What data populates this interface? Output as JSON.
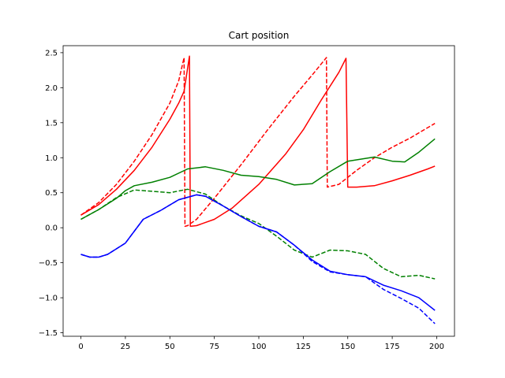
{
  "chart_data": {
    "type": "line",
    "title": "Cart position",
    "xlabel": "",
    "ylabel": "",
    "xlim": [
      -10,
      210
    ],
    "ylim": [
      -1.55,
      2.6
    ],
    "xticks": [
      0,
      25,
      50,
      75,
      100,
      125,
      150,
      175,
      200
    ],
    "xtick_labels": [
      "0",
      "25",
      "50",
      "75",
      "100",
      "125",
      "150",
      "175",
      "200"
    ],
    "yticks": [
      -1.5,
      -1.0,
      -0.5,
      0.0,
      0.5,
      1.0,
      1.5,
      2.0,
      2.5
    ],
    "ytick_labels": [
      "−1.5",
      "−1.0",
      "−0.5",
      "0.0",
      "0.5",
      "1.0",
      "1.5",
      "2.0",
      "2.5"
    ],
    "grid": false,
    "legend": "none",
    "series": [
      {
        "color": "#ff0000",
        "style": "solid",
        "points": [
          [
            0,
            0.18
          ],
          [
            10,
            0.33
          ],
          [
            20,
            0.55
          ],
          [
            30,
            0.82
          ],
          [
            40,
            1.15
          ],
          [
            50,
            1.55
          ],
          [
            55,
            1.78
          ],
          [
            58,
            1.95
          ],
          [
            61,
            2.45
          ],
          [
            61.5,
            0.02
          ],
          [
            65,
            0.03
          ],
          [
            75,
            0.12
          ],
          [
            85,
            0.28
          ],
          [
            100,
            0.62
          ],
          [
            115,
            1.05
          ],
          [
            125,
            1.4
          ],
          [
            135,
            1.82
          ],
          [
            145,
            2.22
          ],
          [
            149,
            2.42
          ],
          [
            150,
            0.58
          ],
          [
            155,
            0.58
          ],
          [
            165,
            0.6
          ],
          [
            175,
            0.67
          ],
          [
            185,
            0.75
          ],
          [
            195,
            0.84
          ],
          [
            199,
            0.88
          ]
        ]
      },
      {
        "color": "#ff0000",
        "style": "dashed",
        "points": [
          [
            0,
            0.18
          ],
          [
            10,
            0.36
          ],
          [
            20,
            0.62
          ],
          [
            30,
            0.95
          ],
          [
            40,
            1.33
          ],
          [
            50,
            1.78
          ],
          [
            55,
            2.1
          ],
          [
            58,
            2.43
          ],
          [
            58.5,
            0.02
          ],
          [
            60,
            0.03
          ],
          [
            65,
            0.12
          ],
          [
            75,
            0.42
          ],
          [
            90,
            0.9
          ],
          [
            105,
            1.4
          ],
          [
            120,
            1.88
          ],
          [
            130,
            2.18
          ],
          [
            138,
            2.43
          ],
          [
            138.5,
            0.58
          ],
          [
            145,
            0.62
          ],
          [
            155,
            0.82
          ],
          [
            165,
            1.0
          ],
          [
            175,
            1.15
          ],
          [
            185,
            1.28
          ],
          [
            195,
            1.43
          ],
          [
            199,
            1.49
          ]
        ]
      },
      {
        "color": "#008000",
        "style": "solid",
        "points": [
          [
            0,
            0.12
          ],
          [
            10,
            0.26
          ],
          [
            20,
            0.42
          ],
          [
            25,
            0.53
          ],
          [
            30,
            0.6
          ],
          [
            40,
            0.65
          ],
          [
            50,
            0.72
          ],
          [
            60,
            0.84
          ],
          [
            70,
            0.87
          ],
          [
            80,
            0.82
          ],
          [
            90,
            0.75
          ],
          [
            100,
            0.73
          ],
          [
            110,
            0.69
          ],
          [
            120,
            0.61
          ],
          [
            130,
            0.63
          ],
          [
            140,
            0.8
          ],
          [
            150,
            0.95
          ],
          [
            165,
            1.01
          ],
          [
            175,
            0.95
          ],
          [
            182,
            0.94
          ],
          [
            190,
            1.08
          ],
          [
            199,
            1.27
          ]
        ]
      },
      {
        "color": "#008000",
        "style": "dashed",
        "points": [
          [
            0,
            0.12
          ],
          [
            10,
            0.26
          ],
          [
            20,
            0.43
          ],
          [
            30,
            0.54
          ],
          [
            40,
            0.52
          ],
          [
            50,
            0.5
          ],
          [
            60,
            0.55
          ],
          [
            70,
            0.48
          ],
          [
            80,
            0.31
          ],
          [
            90,
            0.17
          ],
          [
            100,
            0.06
          ],
          [
            110,
            -0.12
          ],
          [
            120,
            -0.32
          ],
          [
            130,
            -0.42
          ],
          [
            140,
            -0.32
          ],
          [
            150,
            -0.33
          ],
          [
            160,
            -0.38
          ],
          [
            170,
            -0.58
          ],
          [
            180,
            -0.7
          ],
          [
            190,
            -0.68
          ],
          [
            199,
            -0.73
          ]
        ]
      },
      {
        "color": "#0000ff",
        "style": "solid",
        "points": [
          [
            0,
            -0.38
          ],
          [
            5,
            -0.42
          ],
          [
            10,
            -0.42
          ],
          [
            15,
            -0.38
          ],
          [
            25,
            -0.22
          ],
          [
            35,
            0.12
          ],
          [
            45,
            0.25
          ],
          [
            55,
            0.4
          ],
          [
            65,
            0.47
          ],
          [
            70,
            0.45
          ],
          [
            80,
            0.31
          ],
          [
            90,
            0.16
          ],
          [
            100,
            0.02
          ],
          [
            110,
            -0.06
          ],
          [
            120,
            -0.25
          ],
          [
            130,
            -0.46
          ],
          [
            140,
            -0.62
          ],
          [
            150,
            -0.67
          ],
          [
            160,
            -0.7
          ],
          [
            170,
            -0.82
          ],
          [
            180,
            -0.9
          ],
          [
            190,
            -1.0
          ],
          [
            199,
            -1.18
          ]
        ]
      },
      {
        "color": "#0000ff",
        "style": "dashed",
        "points": [
          [
            0,
            -0.38
          ],
          [
            5,
            -0.42
          ],
          [
            10,
            -0.42
          ],
          [
            15,
            -0.38
          ],
          [
            25,
            -0.22
          ],
          [
            35,
            0.12
          ],
          [
            45,
            0.25
          ],
          [
            55,
            0.4
          ],
          [
            65,
            0.47
          ],
          [
            70,
            0.45
          ],
          [
            80,
            0.31
          ],
          [
            90,
            0.16
          ],
          [
            100,
            0.02
          ],
          [
            110,
            -0.06
          ],
          [
            120,
            -0.25
          ],
          [
            130,
            -0.48
          ],
          [
            140,
            -0.63
          ],
          [
            150,
            -0.67
          ],
          [
            160,
            -0.7
          ],
          [
            170,
            -0.88
          ],
          [
            180,
            -1.01
          ],
          [
            190,
            -1.15
          ],
          [
            199,
            -1.37
          ]
        ]
      }
    ]
  }
}
